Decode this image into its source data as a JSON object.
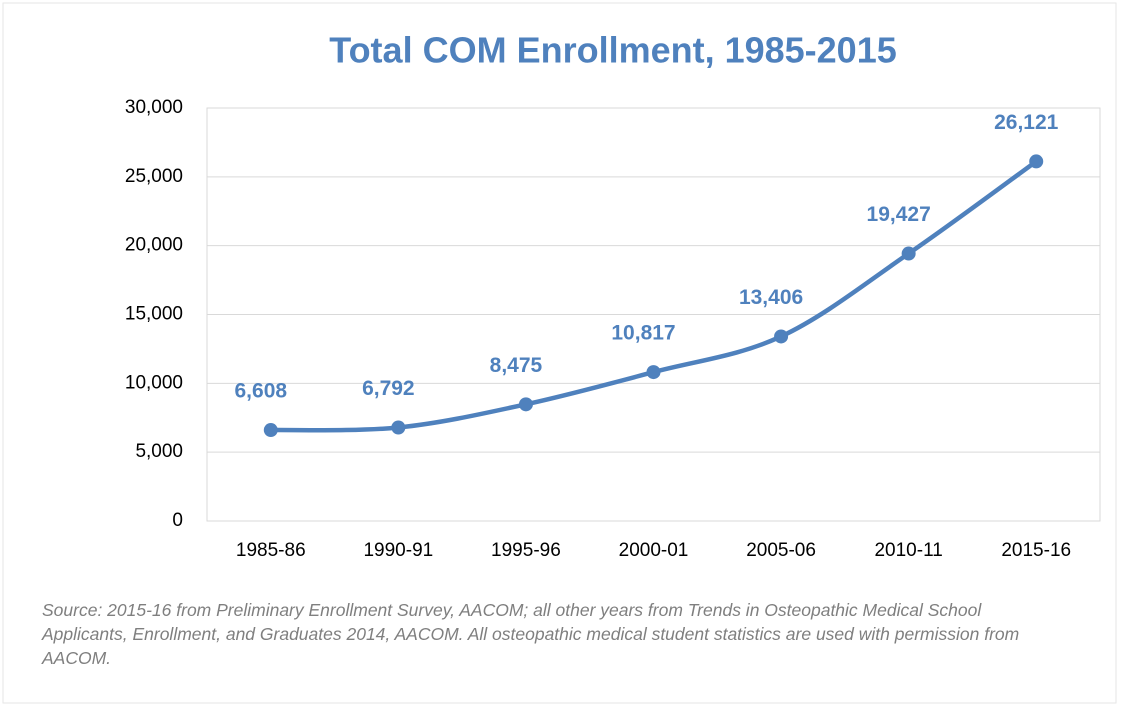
{
  "chart_data": {
    "type": "line",
    "title": "Total COM Enrollment, 1985-2015",
    "categories": [
      "1985-86",
      "1990-91",
      "1995-96",
      "2000-01",
      "2005-06",
      "2010-11",
      "2015-16"
    ],
    "series": [
      {
        "name": "Total COM Enrollment",
        "color": "#4f81bd",
        "values": [
          6608,
          6792,
          8475,
          10817,
          13406,
          19427,
          26121
        ],
        "value_labels": [
          "6,608",
          "6,792",
          "8,475",
          "10,817",
          "13,406",
          "19,427",
          "26,121"
        ]
      }
    ],
    "ylim": [
      0,
      30000
    ],
    "yticks": [
      0,
      {
        "value": 5000,
        "label": "5,000"
      },
      {
        "value": 10000,
        "label": "10,000"
      },
      {
        "value": 15000,
        "label": "15,000"
      },
      {
        "value": 20000,
        "label": "20,000"
      },
      {
        "value": 25000,
        "label": "25,000"
      },
      {
        "value": 30000,
        "label": "30,000"
      }
    ],
    "grid": true,
    "smooth": true,
    "source": "Source: 2015-16 from Preliminary Enrollment Survey, AACOM; all other years from Trends in Osteopathic Medical School Applicants, Enrollment, and Graduates 2014, AACOM. All osteopathic medical student statistics are used with permission from AACOM."
  }
}
